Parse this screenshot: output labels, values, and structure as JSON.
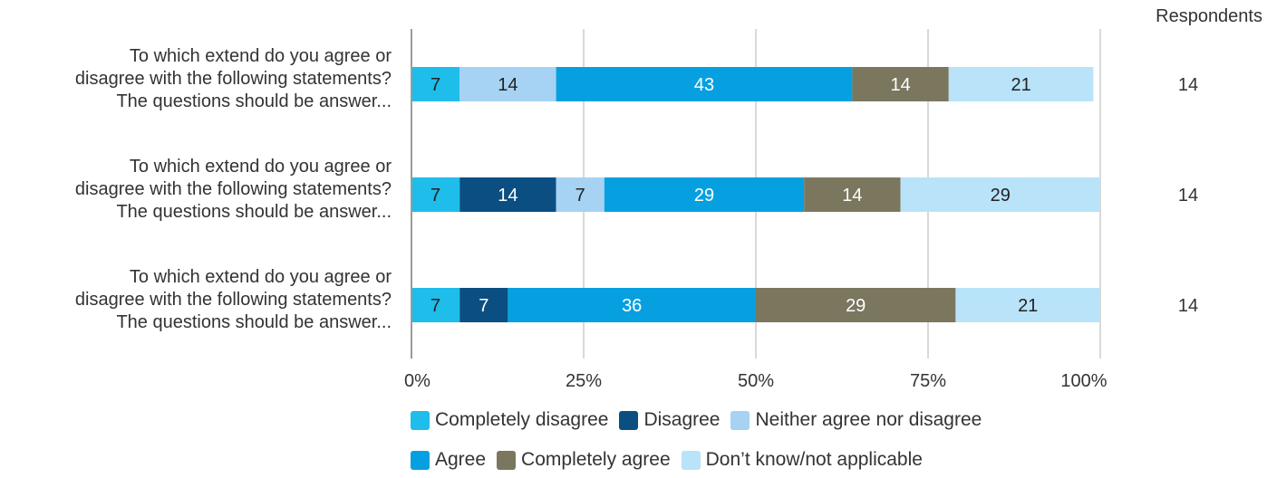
{
  "chart_data": {
    "type": "bar",
    "orientation": "horizontal",
    "stacked": "percent",
    "categories": [
      "To which extend do you agree or disagree with the following statements? The questions should be answer...",
      "To which extend do you agree or disagree with the following statements? The questions should be answer...",
      "To which extend do you agree or disagree with the following statements? The questions should be answer..."
    ],
    "category_lines": [
      [
        "To which extend do you agree or",
        "disagree with the following statements?",
        "The questions should be answer..."
      ],
      [
        "To which extend do you agree or",
        "disagree with the following statements?",
        "The questions should be answer..."
      ],
      [
        "To which extend do you agree or",
        "disagree with the following statements?",
        "The questions should be answer..."
      ]
    ],
    "series": [
      {
        "name": "Completely disagree",
        "color": "#1ebdea",
        "values": [
          7,
          7,
          7
        ],
        "label_color": "#222222"
      },
      {
        "name": "Disagree",
        "color": "#0b4f82",
        "values": [
          0,
          14,
          7
        ],
        "label_color": "#ffffff"
      },
      {
        "name": "Neither agree nor disagree",
        "color": "#a6d2f3",
        "values": [
          14,
          7,
          0
        ],
        "label_color": "#222222"
      },
      {
        "name": "Agree",
        "color": "#06a0e0",
        "values": [
          43,
          29,
          36
        ],
        "label_color": "#ffffff"
      },
      {
        "name": "Completely agree",
        "color": "#7b775f",
        "values": [
          14,
          14,
          29
        ],
        "label_color": "#ffffff"
      },
      {
        "name": "Don’t know/not applicable",
        "color": "#b8e3f8",
        "values": [
          21,
          29,
          21
        ],
        "label_color": "#222222"
      }
    ],
    "xlim": [
      0,
      100
    ],
    "x_ticks": [
      "0%",
      "25%",
      "50%",
      "75%",
      "100%"
    ],
    "grid": true,
    "legend_position": "bottom",
    "respondents_header": "Respondents",
    "respondents": [
      14,
      14,
      14
    ]
  }
}
